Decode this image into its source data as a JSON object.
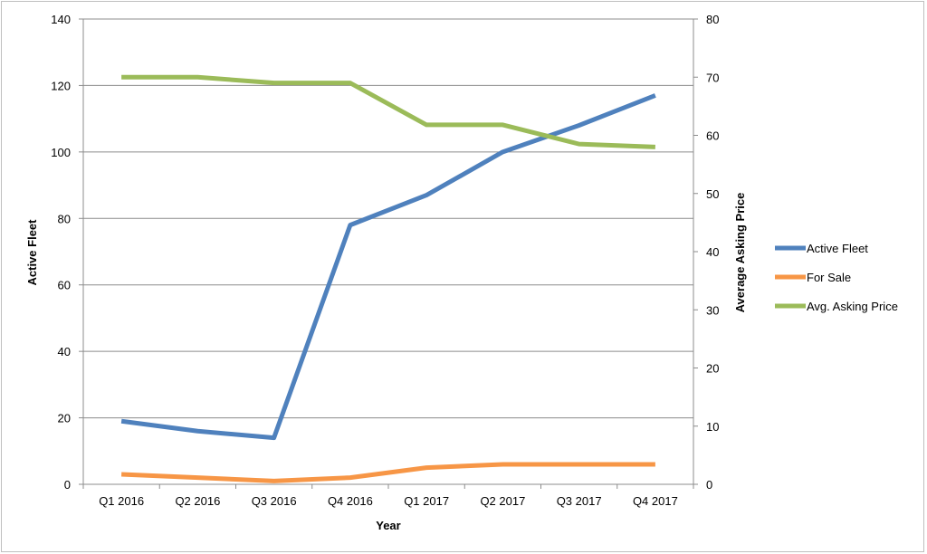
{
  "chart_data": {
    "type": "line",
    "categories": [
      "Q1 2016",
      "Q2 2016",
      "Q3 2016",
      "Q4 2016",
      "Q1 2017",
      "Q2 2017",
      "Q3 2017",
      "Q4 2017"
    ],
    "xlabel": "Year",
    "ylabel": "Active Fleet",
    "y2label": "Average Asking Price",
    "ylim": [
      0,
      140
    ],
    "y2lim": [
      0,
      80
    ],
    "yticks": [
      0,
      20,
      40,
      60,
      80,
      100,
      120,
      140
    ],
    "y2ticks": [
      0,
      10,
      20,
      30,
      40,
      50,
      60,
      70,
      80
    ],
    "grid": true,
    "legend_position": "right",
    "series": [
      {
        "name": "Active Fleet",
        "axis": "left",
        "color": "#4f81bd",
        "values": [
          19,
          16,
          14,
          78,
          87,
          100,
          108,
          117
        ]
      },
      {
        "name": "For Sale",
        "axis": "left",
        "color": "#f79646",
        "values": [
          3,
          2,
          1,
          2,
          5,
          6,
          6,
          6
        ]
      },
      {
        "name": "Avg. Asking Price",
        "axis": "right",
        "color": "#9bbb59",
        "values": [
          70,
          70,
          69,
          69,
          61.8,
          61.8,
          58.5,
          58
        ]
      }
    ]
  }
}
